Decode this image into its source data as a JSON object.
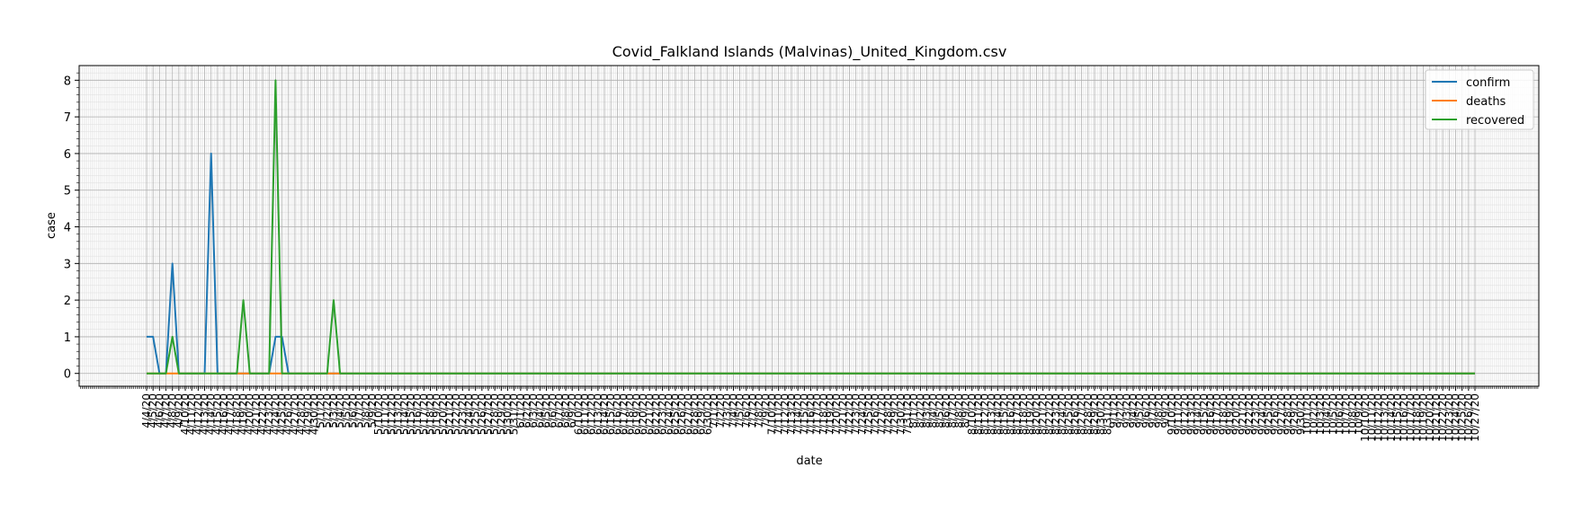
{
  "chart_data": {
    "type": "line",
    "title": "Covid_Falkland Islands (Malvinas)_United_Kingdom.csv",
    "xlabel": "date",
    "ylabel": "case",
    "ylim": [
      -0.35,
      8.4
    ],
    "yticks": [
      0,
      1,
      2,
      3,
      4,
      5,
      6,
      7,
      8
    ],
    "grid": true,
    "legend_position": "upper right",
    "x_start": "4/4/20",
    "x_end": "10/27/20",
    "series": [
      {
        "name": "confirm",
        "color": "#1f77b4",
        "values": [
          1,
          1,
          0,
          0,
          3,
          0,
          0,
          0,
          0,
          0,
          6,
          0,
          0,
          0,
          0,
          0,
          0,
          0,
          0,
          0,
          1,
          1,
          0,
          0,
          0,
          0,
          0,
          0,
          0,
          0,
          0,
          0,
          0,
          0,
          0,
          0,
          0,
          0,
          0,
          0,
          0,
          0,
          0,
          0,
          0,
          0,
          0,
          0,
          0,
          0,
          0,
          0,
          0,
          0,
          0,
          0,
          0,
          0,
          0,
          0,
          0,
          0,
          0,
          0,
          0,
          0,
          0,
          0,
          0,
          0,
          0,
          0,
          0,
          0,
          0,
          0,
          0,
          0,
          0,
          0,
          0,
          0,
          0,
          0,
          0,
          0,
          0,
          0,
          0,
          0,
          0,
          0,
          0,
          0,
          0,
          0,
          0,
          0,
          0,
          0,
          0,
          0,
          0,
          0,
          0,
          0,
          0,
          0,
          0,
          0,
          0,
          0,
          0,
          0,
          0,
          0,
          0,
          0,
          0,
          0,
          0,
          0,
          0,
          0,
          0,
          0,
          0,
          0,
          0,
          0,
          0,
          0,
          0,
          0,
          0,
          0,
          0,
          0,
          0,
          0,
          0,
          0,
          0,
          0,
          0,
          0,
          0,
          0,
          0,
          0,
          0,
          0,
          0,
          0,
          0,
          0,
          0,
          0,
          0,
          0,
          0,
          0,
          0,
          0,
          0,
          0,
          0,
          0,
          0,
          0,
          0,
          0,
          0,
          0,
          0,
          0,
          0,
          0,
          0,
          0,
          0,
          0,
          0,
          0,
          0,
          0,
          0,
          0,
          0,
          0,
          0,
          0,
          0,
          0,
          0,
          0,
          0,
          0,
          0,
          0,
          0,
          0,
          0,
          0,
          0,
          0,
          0
        ]
      },
      {
        "name": "deaths",
        "color": "#ff7f0e",
        "values": [
          0,
          0,
          0,
          0,
          0,
          0,
          0,
          0,
          0,
          0,
          0,
          0,
          0,
          0,
          0,
          0,
          0,
          0,
          0,
          0,
          0,
          0,
          0,
          0,
          0,
          0,
          0,
          0,
          0,
          0,
          0,
          0,
          0,
          0,
          0,
          0,
          0,
          0,
          0,
          0,
          0,
          0,
          0,
          0,
          0,
          0,
          0,
          0,
          0,
          0,
          0,
          0,
          0,
          0,
          0,
          0,
          0,
          0,
          0,
          0,
          0,
          0,
          0,
          0,
          0,
          0,
          0,
          0,
          0,
          0,
          0,
          0,
          0,
          0,
          0,
          0,
          0,
          0,
          0,
          0,
          0,
          0,
          0,
          0,
          0,
          0,
          0,
          0,
          0,
          0,
          0,
          0,
          0,
          0,
          0,
          0,
          0,
          0,
          0,
          0,
          0,
          0,
          0,
          0,
          0,
          0,
          0,
          0,
          0,
          0,
          0,
          0,
          0,
          0,
          0,
          0,
          0,
          0,
          0,
          0,
          0,
          0,
          0,
          0,
          0,
          0,
          0,
          0,
          0,
          0,
          0,
          0,
          0,
          0,
          0,
          0,
          0,
          0,
          0,
          0,
          0,
          0,
          0,
          0,
          0,
          0,
          0,
          0,
          0,
          0,
          0,
          0,
          0,
          0,
          0,
          0,
          0,
          0,
          0,
          0,
          0,
          0,
          0,
          0,
          0,
          0,
          0,
          0,
          0,
          0,
          0,
          0,
          0,
          0,
          0,
          0,
          0,
          0,
          0,
          0,
          0,
          0,
          0,
          0,
          0,
          0,
          0,
          0,
          0,
          0,
          0,
          0,
          0,
          0,
          0,
          0,
          0,
          0,
          0,
          0,
          0,
          0,
          0,
          0,
          0,
          0,
          0
        ]
      },
      {
        "name": "recovered",
        "color": "#2ca02c",
        "values": [
          0,
          0,
          0,
          0,
          1,
          0,
          0,
          0,
          0,
          0,
          0,
          0,
          0,
          0,
          0,
          2,
          0,
          0,
          0,
          0,
          8,
          0,
          0,
          0,
          0,
          0,
          0,
          0,
          0,
          2,
          0,
          0,
          0,
          0,
          0,
          0,
          0,
          0,
          0,
          0,
          0,
          0,
          0,
          0,
          0,
          0,
          0,
          0,
          0,
          0,
          0,
          0,
          0,
          0,
          0,
          0,
          0,
          0,
          0,
          0,
          0,
          0,
          0,
          0,
          0,
          0,
          0,
          0,
          0,
          0,
          0,
          0,
          0,
          0,
          0,
          0,
          0,
          0,
          0,
          0,
          0,
          0,
          0,
          0,
          0,
          0,
          0,
          0,
          0,
          0,
          0,
          0,
          0,
          0,
          0,
          0,
          0,
          0,
          0,
          0,
          0,
          0,
          0,
          0,
          0,
          0,
          0,
          0,
          0,
          0,
          0,
          0,
          0,
          0,
          0,
          0,
          0,
          0,
          0,
          0,
          0,
          0,
          0,
          0,
          0,
          0,
          0,
          0,
          0,
          0,
          0,
          0,
          0,
          0,
          0,
          0,
          0,
          0,
          0,
          0,
          0,
          0,
          0,
          0,
          0,
          0,
          0,
          0,
          0,
          0,
          0,
          0,
          0,
          0,
          0,
          0,
          0,
          0,
          0,
          0,
          0,
          0,
          0,
          0,
          0,
          0,
          0,
          0,
          0,
          0,
          0,
          0,
          0,
          0,
          0,
          0,
          0,
          0,
          0,
          0,
          0,
          0,
          0,
          0,
          0,
          0,
          0,
          0,
          0,
          0,
          0,
          0,
          0,
          0,
          0,
          0,
          0,
          0,
          0,
          0,
          0,
          0,
          0,
          0,
          0,
          0,
          0
        ]
      }
    ]
  }
}
